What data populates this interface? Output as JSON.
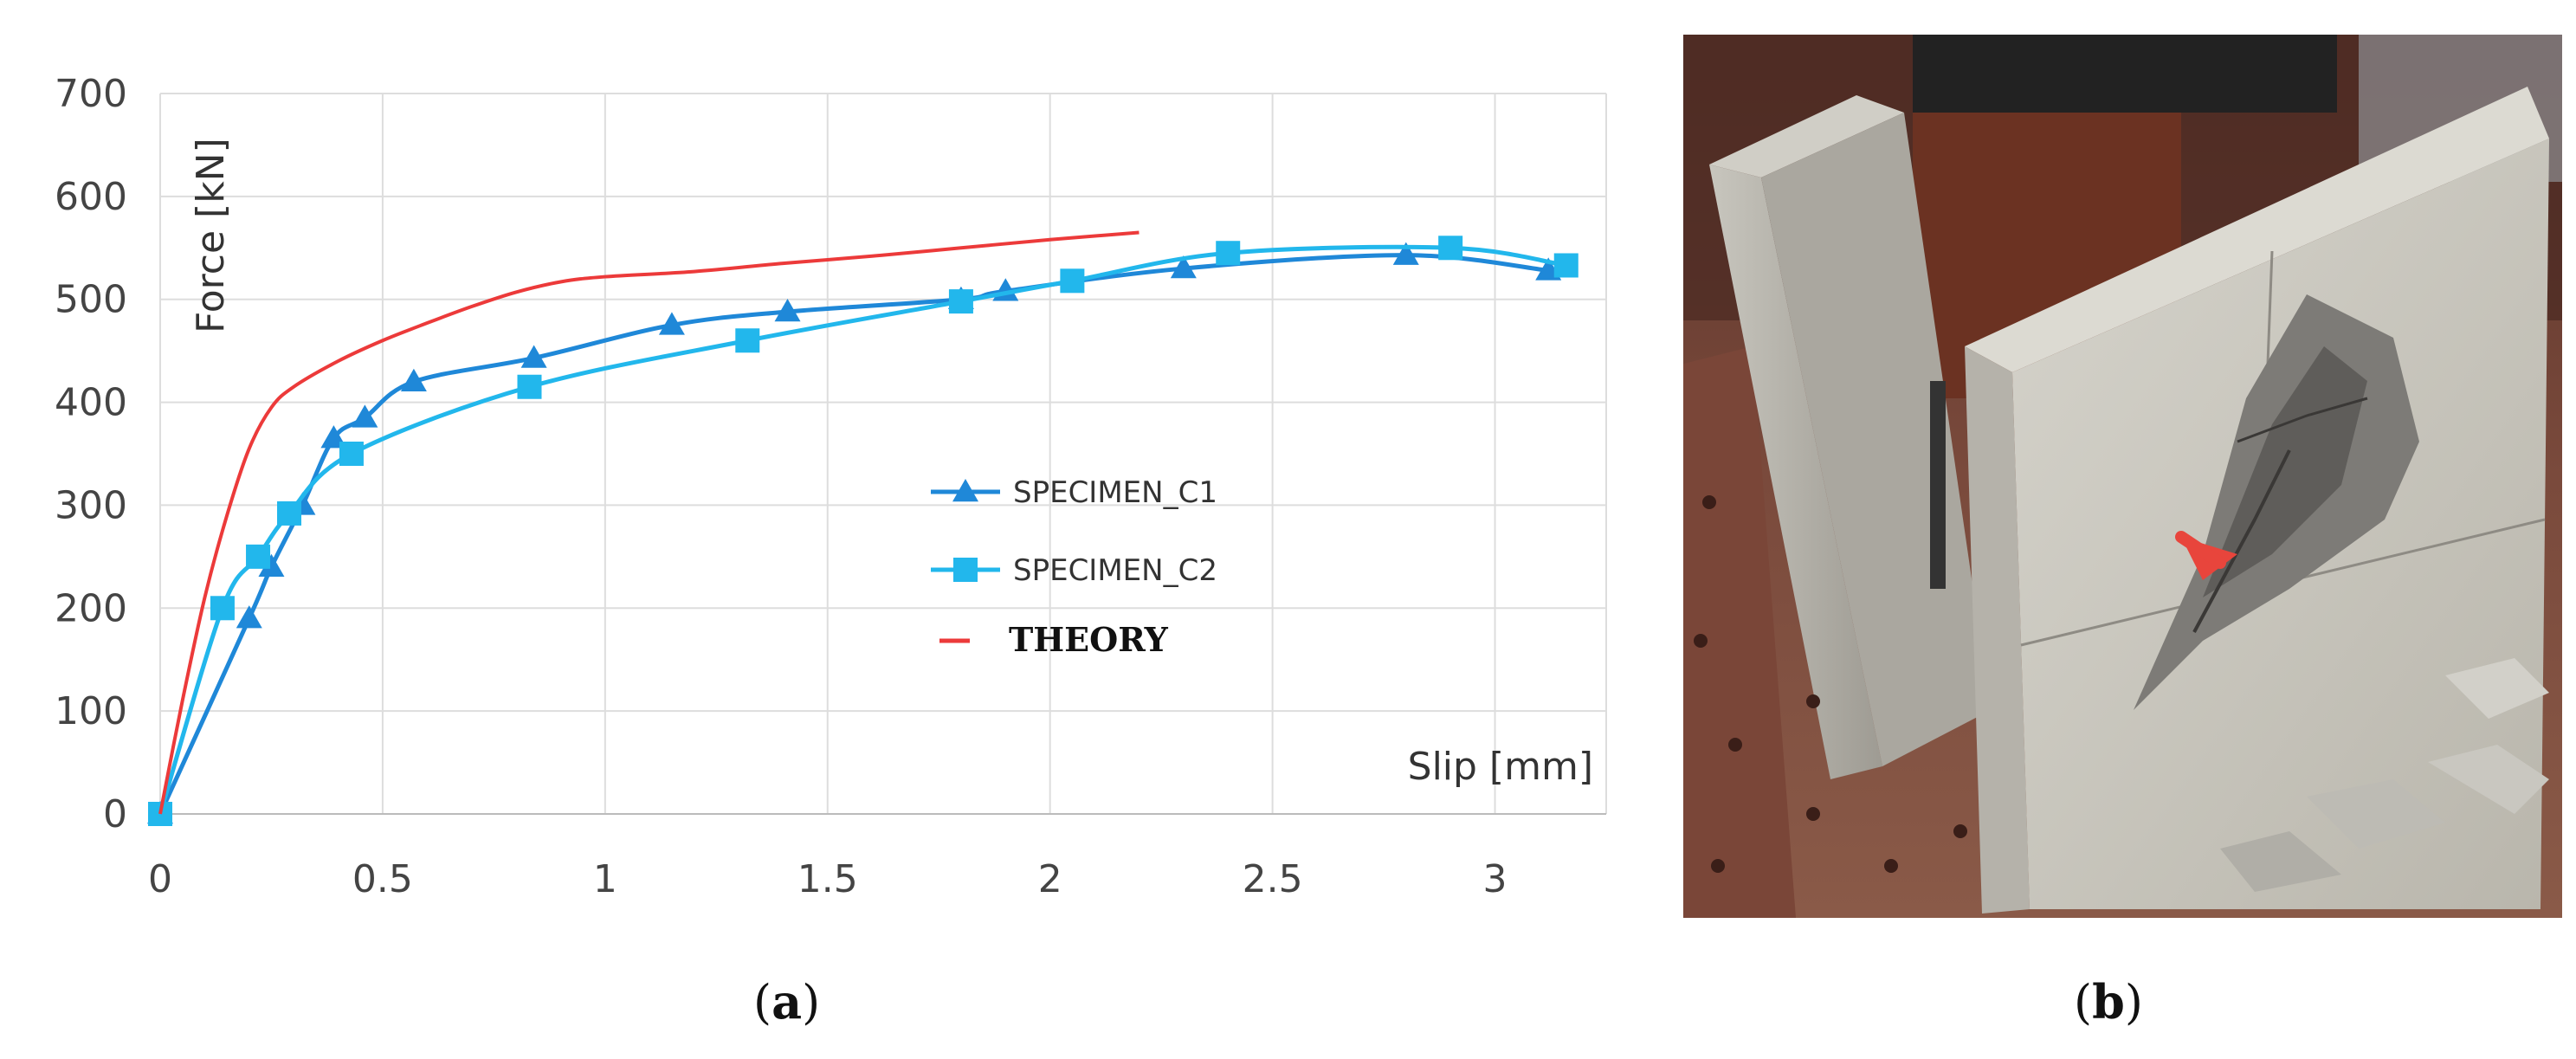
{
  "chart_data": {
    "type": "line",
    "xlabel": "Slip [mm]",
    "ylabel": "Force [kN]",
    "xlim": [
      0,
      3.25
    ],
    "ylim": [
      0,
      700
    ],
    "xticks": [
      0,
      0.5,
      1,
      1.5,
      2,
      2.5,
      3
    ],
    "yticks": [
      0,
      100,
      200,
      300,
      400,
      500,
      600,
      700
    ],
    "grid": true,
    "legend_position": "center-right",
    "series": [
      {
        "name": "SPECIMEN_C1",
        "color": "#1f88d8",
        "marker": "triangle",
        "x": [
          0,
          0.2,
          0.25,
          0.32,
          0.39,
          0.46,
          0.57,
          0.84,
          1.15,
          1.41,
          1.8,
          1.9,
          2.3,
          2.8,
          3.12
        ],
        "y": [
          0,
          190,
          240,
          300,
          365,
          385,
          420,
          443,
          475,
          488,
          500,
          508,
          530,
          543,
          528
        ]
      },
      {
        "name": "SPECIMEN_C2",
        "color": "#22b7ec",
        "marker": "square",
        "x": [
          0,
          0.14,
          0.22,
          0.29,
          0.43,
          0.83,
          1.32,
          1.8,
          2.05,
          2.4,
          2.9,
          3.16
        ],
        "y": [
          0,
          200,
          250,
          292,
          350,
          415,
          460,
          498,
          518,
          545,
          550,
          533
        ]
      },
      {
        "name": "THEORY",
        "color": "#ec3a3a",
        "marker": "none",
        "x": [
          0,
          0.05,
          0.1,
          0.15,
          0.2,
          0.25,
          0.3,
          0.4,
          0.5,
          0.6,
          0.7,
          0.8,
          0.9,
          1.0,
          1.2,
          1.4,
          1.6,
          1.8,
          2.0,
          2.2
        ],
        "y": [
          0,
          110,
          210,
          290,
          355,
          395,
          415,
          440,
          460,
          477,
          493,
          507,
          517,
          522,
          527,
          535,
          542,
          550,
          558,
          565
        ]
      }
    ]
  },
  "captions": {
    "left": "a",
    "right": "b"
  },
  "photo": {
    "description_icon": "concrete-specimen-photo",
    "arrow_color": "#e8453c"
  }
}
